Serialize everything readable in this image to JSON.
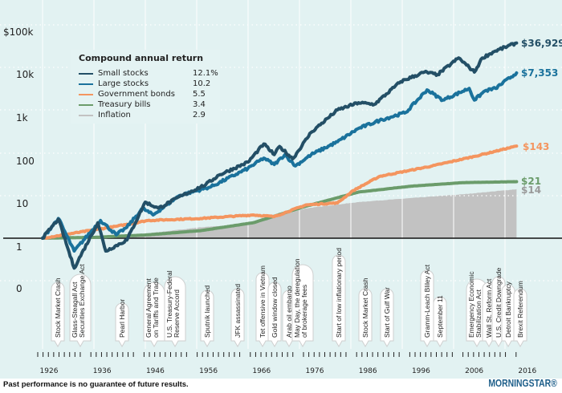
{
  "chart_data": {
    "type": "line",
    "yscale": "log",
    "y_tick_labels": [
      "$100k",
      "10k",
      "1k",
      "100",
      "10",
      "1",
      "0"
    ],
    "x_tick_labels": [
      "1926",
      "1936",
      "1946",
      "1956",
      "1966",
      "1976",
      "1986",
      "1996",
      "2006",
      "2016"
    ],
    "xlim": [
      1926,
      2016
    ],
    "grid": true,
    "legend": {
      "title": "Compound annual return",
      "placement": "top-left",
      "entries": [
        {
          "name": "Small stocks",
          "value": "12.1%"
        },
        {
          "name": "Large stocks",
          "value": "10.2"
        },
        {
          "name": "Government bonds",
          "value": "5.5"
        },
        {
          "name": "Treasury bills",
          "value": "3.4"
        },
        {
          "name": "Inflation",
          "value": "2.9"
        }
      ]
    },
    "series": [
      {
        "name": "Small stocks",
        "color": "#234f66",
        "end_label": "$36,929",
        "x": [
          1926,
          1929,
          1932,
          1936.5,
          1938,
          1942,
          1945.5,
          1948,
          1952.5,
          1957,
          1959.5,
          1965,
          1968,
          1970,
          1971,
          1973.5,
          1977,
          1982,
          1986,
          1989,
          1994,
          1998.5,
          2001,
          2005,
          2008,
          2009.5,
          2012,
          2016
        ],
        "y": [
          1,
          2.8,
          0.2,
          2.3,
          0.5,
          0.9,
          7,
          5,
          10,
          18,
          30,
          60,
          160,
          90,
          140,
          72,
          300,
          1000,
          1480,
          1350,
          4600,
          7700,
          6700,
          16500,
          7700,
          16500,
          24000,
          36929
        ]
      },
      {
        "name": "Large stocks",
        "color": "#1a729c",
        "end_label": "$7,353",
        "x": [
          1926,
          1929,
          1932,
          1937,
          1940,
          1942,
          1945,
          1947,
          1952,
          1958,
          1965,
          1968,
          1970,
          1972,
          1974,
          1977,
          1982,
          1986,
          1990,
          1995,
          1999,
          2002,
          2007,
          2008,
          2010,
          2012,
          2016
        ],
        "y": [
          1,
          2.9,
          0.5,
          2.6,
          1.2,
          1.8,
          5,
          3.5,
          10,
          16,
          43,
          75,
          53,
          90,
          49,
          90,
          180,
          370,
          570,
          880,
          2950,
          1700,
          3200,
          1700,
          2800,
          3200,
          7353
        ]
      },
      {
        "name": "Government bonds",
        "color": "#f4955f",
        "end_label": "$143",
        "x": [
          1926,
          1940,
          1946,
          1956,
          1966,
          1970,
          1976,
          1982,
          1985,
          1990,
          2000,
          2008,
          2016
        ],
        "y": [
          1,
          1.9,
          2.6,
          2.9,
          3.5,
          3.2,
          6,
          6.7,
          13,
          28,
          49,
          82,
          143
        ]
      },
      {
        "name": "Treasury bills",
        "color": "#6b9c6b",
        "end_label": "$21",
        "x": [
          1926,
          1936,
          1946,
          1956,
          1966,
          1976,
          1986,
          1996,
          2006,
          2016
        ],
        "y": [
          1,
          1.05,
          1.2,
          1.5,
          2.3,
          5.6,
          12,
          16.5,
          20,
          21
        ]
      },
      {
        "name": "Inflation",
        "color": "#c2c2c2",
        "end_label": "$14",
        "x": [
          1926,
          1933,
          1940,
          1946,
          1956,
          1966,
          1976,
          1986,
          1996,
          2006,
          2016
        ],
        "y": [
          1,
          0.8,
          0.85,
          1.3,
          1.8,
          2.2,
          5,
          7,
          8.7,
          10.7,
          14
        ]
      }
    ],
    "annotations": [
      {
        "year": 1929,
        "text": "Stock Market Crash"
      },
      {
        "year": 1933.5,
        "text": "Glass-Steagall Act\nSecurities Exchange Act"
      },
      {
        "year": 1941,
        "text": "Pearl Harbor"
      },
      {
        "year": 1947,
        "text": "General Agreement\non Tariffs and Trade"
      },
      {
        "year": 1951,
        "text": "U.S. Treasury-Federal\nReserve Accord"
      },
      {
        "year": 1957,
        "text": "Sputnik launched"
      },
      {
        "year": 1963,
        "text": "JFK assassinated"
      },
      {
        "year": 1968,
        "text": "Tet offensive in Vietnam"
      },
      {
        "year": 1971,
        "text": "Gold window closed"
      },
      {
        "year": 1973,
        "text": "Arab oil embargo"
      },
      {
        "year": 1975,
        "text": "May Day, the deregulation\nof brokerage fees"
      },
      {
        "year": 1982,
        "text": "Start of low inflationary period"
      },
      {
        "year": 1987,
        "text": "Stock Market Crash"
      },
      {
        "year": 1990,
        "text": "Start of Gulf War"
      },
      {
        "year": 1999,
        "text": "Gramm-Leach Bliley Act"
      },
      {
        "year": 2001,
        "text": "September 11"
      },
      {
        "year": 2008,
        "text": "Emergency Economic\nStabilization Act"
      },
      {
        "year": 2010,
        "text": "Wall St. Reform Act"
      },
      {
        "year": 2011,
        "text": "U.S. Credit Downgrade"
      },
      {
        "year": 2013,
        "text": "Detroit Bankruptcy"
      },
      {
        "year": 2016,
        "text": "Brexit Referendum"
      }
    ]
  },
  "footer": {
    "disclaimer": "Past performance is no guarantee of future results.",
    "logo": "MORNINGSTAR®"
  },
  "colors": {
    "background": "#e2f2f2",
    "baseline": "#111111"
  }
}
